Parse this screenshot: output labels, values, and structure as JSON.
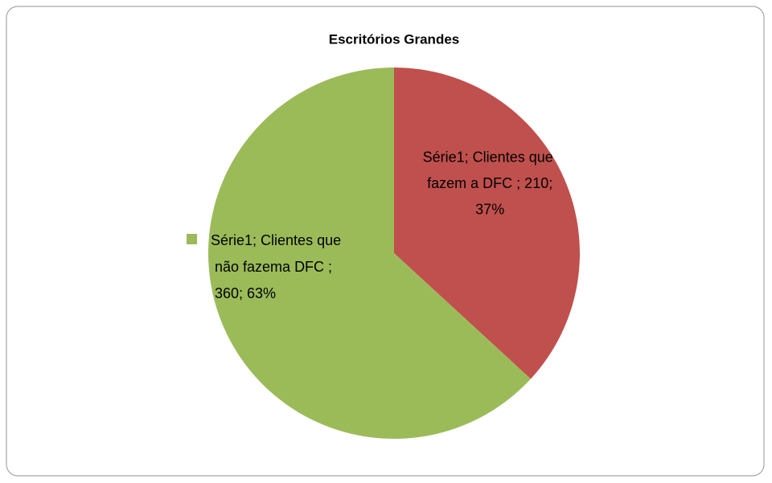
{
  "chart_data": {
    "type": "pie",
    "title": "Escritórios Grandes",
    "series": [
      {
        "name": "Série1",
        "values": [
          210,
          360
        ],
        "colors": [
          "#c0504d",
          "#9bbb59"
        ],
        "value_labels": [
          "Série1; Clientes que fazem a DFC ; 210; 37%",
          "Série1; Clientes que não fazema DFC ; 360; 63%"
        ]
      }
    ]
  }
}
